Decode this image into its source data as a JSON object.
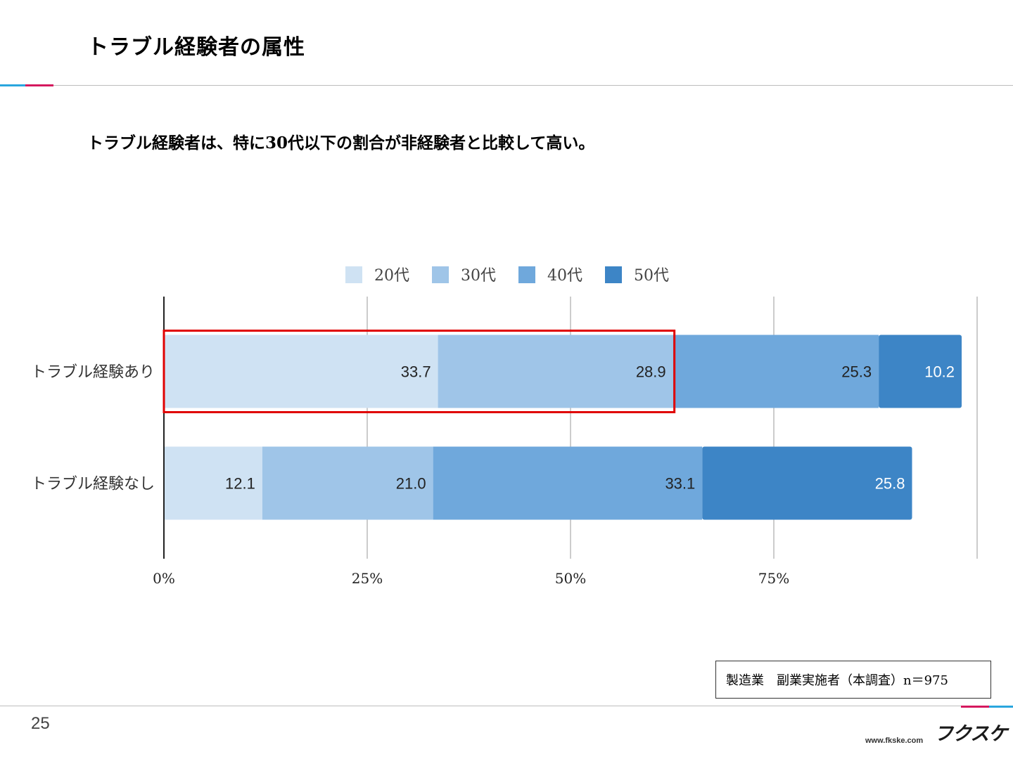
{
  "page": {
    "title": "トラブル経験者の属性",
    "subtitle": "トラブル経験者は、特に30代以下の割合が非経験者と比較して高い。",
    "note": "製造業　副業実施者（本調査）n＝975",
    "page_number": "25",
    "site_url": "www.fkske.com",
    "brand": "フクスケ",
    "colors": {
      "accent_pink": "#d5195e",
      "accent_blue": "#2aa6de",
      "highlight_box": "#e00000"
    }
  },
  "chart_data": {
    "type": "bar",
    "orientation": "horizontal",
    "stacked": true,
    "categories": [
      "トラブル経験あり",
      "トラブル経験なし"
    ],
    "series": [
      {
        "name": "20代",
        "color": "#cfe2f3",
        "label_color": "#222222",
        "values": [
          33.7,
          12.1
        ]
      },
      {
        "name": "30代",
        "color": "#9fc5e8",
        "label_color": "#222222",
        "values": [
          28.9,
          21.0
        ]
      },
      {
        "name": "40代",
        "color": "#6fa8dc",
        "label_color": "#222222",
        "values": [
          25.3,
          33.1
        ]
      },
      {
        "name": "50代",
        "color": "#3d85c6",
        "label_color": "#ffffff",
        "values": [
          10.2,
          25.8
        ]
      }
    ],
    "x_ticks": [
      "0%",
      "25%",
      "50%",
      "75%"
    ],
    "x_tick_values": [
      0,
      25,
      50,
      75
    ],
    "xlim": [
      0,
      100
    ],
    "grid": true,
    "legend_position": "top",
    "highlight": {
      "category_index": 0,
      "series": [
        "20代",
        "30代"
      ]
    }
  }
}
